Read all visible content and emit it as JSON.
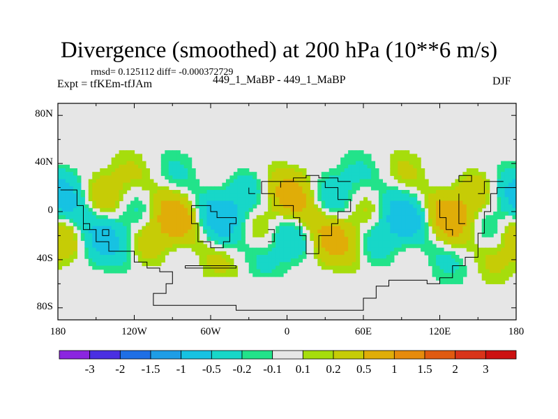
{
  "chart_data": {
    "type": "heatmap",
    "title": "Divergence (smoothed) at 200 hPa (10**6 m/s)",
    "subtitle_left_top": "rmsd= 0.125112 diff= -0.000372729",
    "subtitle_left": "Expt = tfKEm-tfJAm",
    "subtitle_center": "449_1_MaBP - 449_1_MaBP",
    "subtitle_right": "DJF",
    "x_ticks": [
      "180",
      "120W",
      "60W",
      "0",
      "60E",
      "120E",
      "180"
    ],
    "x_tick_values": [
      -180,
      -120,
      -60,
      0,
      60,
      120,
      180
    ],
    "y_ticks": [
      "80N",
      "40N",
      "0",
      "40S",
      "80S"
    ],
    "y_tick_values": [
      80,
      40,
      0,
      -40,
      -80
    ],
    "xlim": [
      -180,
      180
    ],
    "ylim": [
      -90,
      90
    ],
    "missing_color": "#e6e6e6",
    "colorbar": {
      "levels": [
        "-3",
        "-2",
        "-1.5",
        "-1",
        "-0.5",
        "-0.2",
        "-0.1",
        "0.1",
        "0.2",
        "0.5",
        "1",
        "1.5",
        "2",
        "3"
      ],
      "colors": [
        "#8b25e0",
        "#4a2fe2",
        "#1f6fe5",
        "#1e9de6",
        "#17c2e2",
        "#17d7c8",
        "#22e38a",
        "#e6e6e6",
        "#a6dd0c",
        "#c6cc06",
        "#e0ad08",
        "#e68b0c",
        "#e05a10",
        "#d9341a",
        "#cc1111"
      ]
    }
  }
}
